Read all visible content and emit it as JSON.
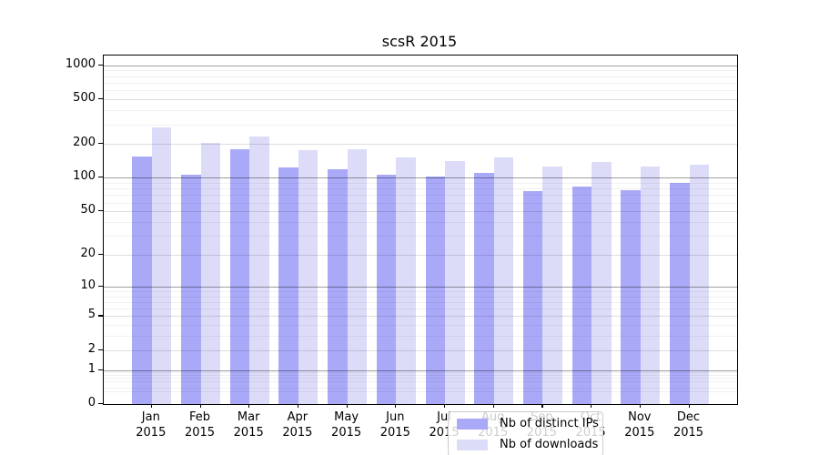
{
  "chart_data": {
    "type": "bar",
    "title": "scsR 2015",
    "categories": [
      "Jan",
      "Feb",
      "Mar",
      "Apr",
      "May",
      "Jun",
      "Jul",
      "Aug",
      "Sep",
      "Oct",
      "Nov",
      "Dec"
    ],
    "year_label": "2015",
    "series": [
      {
        "name": "Nb of distinct IPs",
        "color": "#a9a9f8",
        "values": [
          156,
          106,
          180,
          124,
          120,
          106,
          103,
          110,
          76,
          84,
          77,
          90
        ]
      },
      {
        "name": "Nb of downloads",
        "color": "#dcdcf8",
        "values": [
          283,
          204,
          233,
          175,
          180,
          152,
          142,
          151,
          125,
          138,
          125,
          130
        ]
      }
    ],
    "y_axis": {
      "scale": "log10(1+x)",
      "tick_labels": [
        "1000",
        "500",
        "200",
        "100",
        "50",
        "20",
        "10",
        "5",
        "2",
        "1",
        "0"
      ],
      "ticks": [
        1000,
        500,
        200,
        100,
        50,
        20,
        10,
        5,
        2,
        1,
        0
      ],
      "decade_ticks": [
        1,
        10,
        100,
        1000
      ],
      "minor_ticks": [
        0.3,
        0.4,
        0.6,
        0.7,
        0.8,
        0.9,
        3,
        4,
        6,
        7,
        8,
        9,
        30,
        40,
        60,
        70,
        80,
        90,
        300,
        400,
        600,
        700,
        800,
        900
      ],
      "ylim": [
        0,
        1227
      ]
    },
    "legend": {
      "position": "inside-bottom-center",
      "entries": [
        "Nb of distinct IPs",
        "Nb of downloads"
      ]
    },
    "grid": true,
    "colors": {
      "spine": "#000000",
      "background": "#ffffff"
    }
  }
}
